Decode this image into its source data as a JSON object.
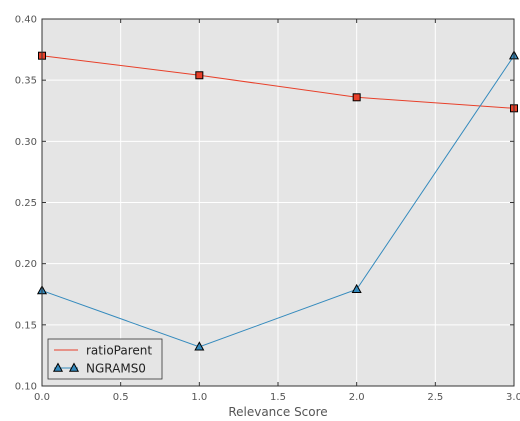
{
  "chart_data": {
    "type": "line",
    "title": "",
    "xlabel": "Relevance Score",
    "ylabel": "",
    "xlim": [
      0.0,
      3.0
    ],
    "ylim": [
      0.1,
      0.4
    ],
    "xticks": [
      "0.0",
      "0.5",
      "1.0",
      "1.5",
      "2.0",
      "2.5",
      "3.0"
    ],
    "yticks": [
      "0.10",
      "0.15",
      "0.20",
      "0.25",
      "0.30",
      "0.35",
      "0.40"
    ],
    "grid": true,
    "legend_position": "lower-left",
    "x": [
      0,
      1,
      2,
      3
    ],
    "series": [
      {
        "name": "ratioParent",
        "values": [
          0.37,
          0.354,
          0.336,
          0.327
        ],
        "color": "#e8402a",
        "marker": "square"
      },
      {
        "name": "NGRAMS0",
        "values": [
          0.178,
          0.132,
          0.179,
          0.37
        ],
        "color": "#348abd",
        "marker": "triangle"
      }
    ]
  }
}
